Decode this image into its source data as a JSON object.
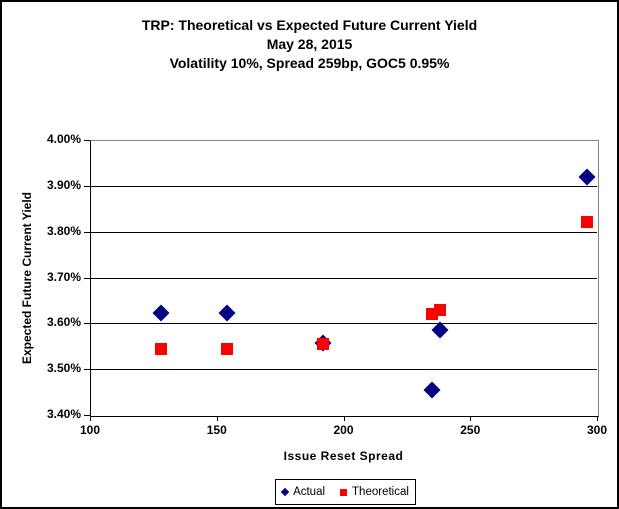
{
  "window": {
    "background": "#FFFFFF",
    "border_color": "#000000",
    "gridline_color": "#000000",
    "plot_border_color": "#848484"
  },
  "chart_data": {
    "type": "scatter",
    "title": "TRP: Theoretical vs Expected Future Current Yield",
    "subtitle_date": "May 28, 2015",
    "subtitle_params": "Volatility 10%, Spread 259bp, GOC5 0.95%",
    "xlabel": "Issue Reset Spread",
    "ylabel": "Expected Future Current Yield",
    "xlim": [
      100,
      300
    ],
    "ylim": [
      3.4,
      4.0
    ],
    "xticks": [
      100,
      150,
      200,
      250,
      300
    ],
    "yticks": [
      3.4,
      3.5,
      3.6,
      3.7,
      3.8,
      3.9,
      4.0
    ],
    "ytick_format": "0.00%",
    "grid": "horizontal-only",
    "legend_position": "bottom-center",
    "series": [
      {
        "name": "Actual",
        "marker": "diamond",
        "color": "#000080",
        "points": [
          [
            128,
            3.622
          ],
          [
            154,
            3.623
          ],
          [
            192,
            3.558
          ],
          [
            235,
            3.455
          ],
          [
            238,
            3.586
          ],
          [
            296,
            3.919
          ]
        ]
      },
      {
        "name": "Theoretical",
        "marker": "square",
        "color": "#FF0000",
        "points": [
          [
            128,
            3.543
          ],
          [
            154,
            3.545
          ],
          [
            192,
            3.554
          ],
          [
            235,
            3.62
          ],
          [
            238,
            3.629
          ],
          [
            296,
            3.821
          ]
        ]
      }
    ]
  }
}
